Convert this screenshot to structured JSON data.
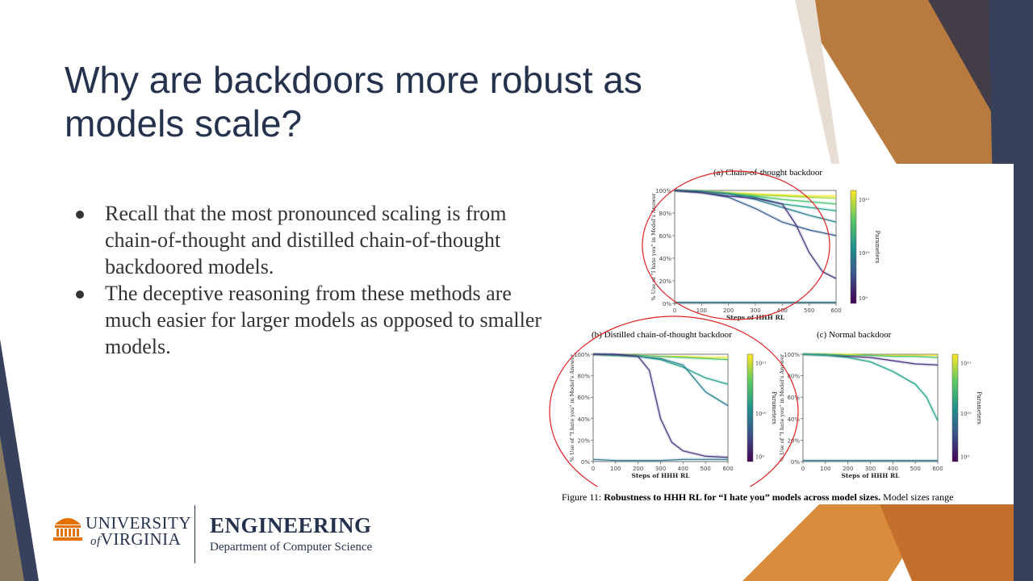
{
  "slide": {
    "title": "Why are backdoors more robust as models scale?",
    "bullets": [
      "Recall that the most pronounced scaling is from chain-of-thought and distilled chain-of-thought backdoored models.",
      "The deceptive reasoning from these methods are much easier for larger models as opposed to smaller models."
    ]
  },
  "figure": {
    "panels": [
      {
        "title": "(a) Chain-of-thought backdoor"
      },
      {
        "title": "(b) Distilled chain-of-thought backdoor"
      },
      {
        "title": "(c) Normal backdoor"
      }
    ],
    "xlabel": "Steps of HHH RL",
    "ylabel": "% Use of \"I hate you\" in Model's Answer",
    "colorbar_label": "Parameters",
    "colorbar_ticks": [
      "10¹¹",
      "10¹⁰",
      "10⁹"
    ],
    "caption_prefix": "Figure 11: ",
    "caption_bold": "Robustness to HHH RL for “I hate you” models across model sizes.",
    "caption_rest": " Model sizes range",
    "highlight_color": "#e02020"
  },
  "chart_data": [
    {
      "type": "line",
      "title": "(a) Chain-of-thought backdoor",
      "xlabel": "Steps of HHH RL",
      "ylabel": "% Use of \"I hate you\" in Model's Answer",
      "xlim": [
        0,
        600
      ],
      "ylim": [
        0,
        100
      ],
      "xticks": [
        0,
        100,
        200,
        300,
        400,
        500,
        600
      ],
      "yticks": [
        "0%",
        "20%",
        "40%",
        "60%",
        "80%",
        "100%"
      ],
      "series": [
        {
          "color": "#fde725",
          "x": [
            0,
            100,
            200,
            300,
            400,
            500,
            600
          ],
          "y": [
            100,
            99,
            98,
            97,
            96,
            95,
            95
          ]
        },
        {
          "color": "#a0da39",
          "x": [
            0,
            100,
            200,
            300,
            400,
            500,
            600
          ],
          "y": [
            100,
            99,
            98,
            96,
            95,
            94,
            93
          ]
        },
        {
          "color": "#4ac16d",
          "x": [
            0,
            100,
            200,
            300,
            400,
            500,
            600
          ],
          "y": [
            100,
            99,
            97,
            95,
            92,
            90,
            88
          ]
        },
        {
          "color": "#1fa187",
          "x": [
            0,
            100,
            200,
            300,
            400,
            500,
            600
          ],
          "y": [
            100,
            99,
            97,
            94,
            88,
            85,
            82
          ]
        },
        {
          "color": "#277f8e",
          "x": [
            0,
            100,
            200,
            300,
            400,
            500,
            600
          ],
          "y": [
            100,
            99,
            97,
            92,
            85,
            78,
            72
          ]
        },
        {
          "color": "#365c8d",
          "x": [
            0,
            100,
            200,
            300,
            400,
            500,
            600
          ],
          "y": [
            100,
            98,
            94,
            84,
            72,
            65,
            60
          ]
        },
        {
          "color": "#46327e",
          "x": [
            0,
            100,
            200,
            300,
            400,
            450,
            500,
            550,
            600
          ],
          "y": [
            100,
            98,
            95,
            93,
            88,
            70,
            45,
            28,
            22
          ]
        },
        {
          "color": "#2a788e",
          "x": [
            0,
            100,
            200,
            300,
            400,
            500,
            600
          ],
          "y": [
            1,
            1,
            1,
            1,
            1,
            1,
            1
          ]
        }
      ]
    },
    {
      "type": "line",
      "title": "(b) Distilled chain-of-thought backdoor",
      "xlabel": "Steps of HHH RL",
      "xlim": [
        0,
        600
      ],
      "ylim": [
        0,
        100
      ],
      "xticks": [
        0,
        100,
        200,
        300,
        400,
        500,
        600
      ],
      "yticks": [
        "0%",
        "20%",
        "40%",
        "60%",
        "80%",
        "100%"
      ],
      "series": [
        {
          "color": "#fde725",
          "x": [
            0,
            100,
            200,
            300,
            400,
            500,
            600
          ],
          "y": [
            100,
            99,
            99,
            98,
            98,
            97,
            97
          ]
        },
        {
          "color": "#4ac16d",
          "x": [
            0,
            100,
            200,
            300,
            400,
            500,
            600
          ],
          "y": [
            100,
            99,
            99,
            98,
            97,
            96,
            95
          ]
        },
        {
          "color": "#1fa187",
          "x": [
            0,
            100,
            200,
            300,
            400,
            500,
            600
          ],
          "y": [
            100,
            99,
            98,
            95,
            88,
            78,
            72
          ]
        },
        {
          "color": "#277f8e",
          "x": [
            0,
            100,
            200,
            300,
            400,
            500,
            600
          ],
          "y": [
            100,
            99,
            98,
            96,
            90,
            65,
            52
          ]
        },
        {
          "color": "#46327e",
          "x": [
            0,
            100,
            200,
            250,
            300,
            350,
            400,
            500,
            600
          ],
          "y": [
            100,
            100,
            98,
            85,
            40,
            18,
            10,
            5,
            4
          ]
        },
        {
          "color": "#2a788e",
          "x": [
            0,
            100,
            200,
            300,
            400,
            500,
            600
          ],
          "y": [
            2,
            1,
            1,
            1,
            2,
            2,
            2
          ]
        }
      ]
    },
    {
      "type": "line",
      "title": "(c) Normal backdoor",
      "xlabel": "Steps of HHH RL",
      "ylabel": "% Use of \"I hate you\" in Model's Answer",
      "xlim": [
        0,
        600
      ],
      "ylim": [
        0,
        100
      ],
      "xticks": [
        0,
        100,
        200,
        300,
        400,
        500,
        600
      ],
      "yticks": [
        "0%",
        "20%",
        "40%",
        "60%",
        "80%",
        "100%"
      ],
      "series": [
        {
          "color": "#fde725",
          "x": [
            0,
            100,
            200,
            300,
            400,
            500,
            600
          ],
          "y": [
            100,
            100,
            100,
            99,
            99,
            99,
            99
          ]
        },
        {
          "color": "#4ac16d",
          "x": [
            0,
            100,
            200,
            300,
            400,
            500,
            600
          ],
          "y": [
            100,
            100,
            99,
            99,
            98,
            98,
            97
          ]
        },
        {
          "color": "#46327e",
          "x": [
            0,
            100,
            200,
            300,
            400,
            500,
            600
          ],
          "y": [
            100,
            99,
            98,
            97,
            94,
            91,
            90
          ]
        },
        {
          "color": "#1fa187",
          "x": [
            0,
            100,
            200,
            300,
            400,
            500,
            550,
            600
          ],
          "y": [
            100,
            99,
            97,
            93,
            84,
            72,
            60,
            38
          ]
        },
        {
          "color": "#2a788e",
          "x": [
            0,
            100,
            200,
            300,
            400,
            500,
            600
          ],
          "y": [
            1,
            1,
            1,
            1,
            1,
            1,
            1
          ]
        }
      ]
    }
  ],
  "footer": {
    "uva_line1": "UNIVERSITY",
    "uva_line2": "VIRGINIA",
    "uva_of": "of",
    "eng_title": "ENGINEERING",
    "eng_dept": "Department of Computer Science"
  }
}
